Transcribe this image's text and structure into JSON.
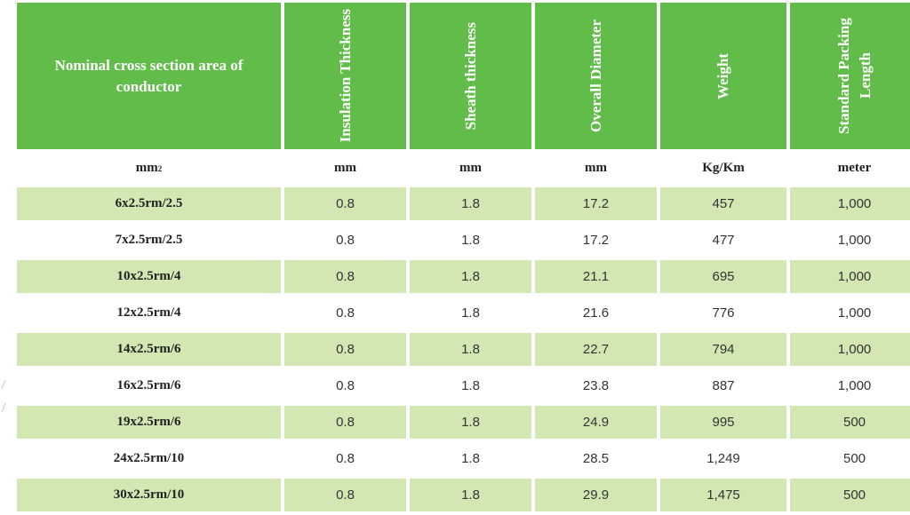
{
  "table": {
    "headers": [
      "Nominal cross section area of conductor",
      "Insulation Thickness",
      "Sheath thickness",
      "Overall Diameter",
      "Weight",
      "Standard Packing Length"
    ],
    "units": [
      "mm",
      "mm",
      "mm",
      "mm",
      "Kg/Km",
      "meter"
    ],
    "unit_first_sup": "2",
    "rows": [
      [
        "6x2.5rm/2.5",
        "0.8",
        "1.8",
        "17.2",
        "457",
        "1,000"
      ],
      [
        "7x2.5rm/2.5",
        "0.8",
        "1.8",
        "17.2",
        "477",
        "1,000"
      ],
      [
        "10x2.5rm/4",
        "0.8",
        "1.8",
        "21.1",
        "695",
        "1,000"
      ],
      [
        "12x2.5rm/4",
        "0.8",
        "1.8",
        "21.6",
        "776",
        "1,000"
      ],
      [
        "14x2.5rm/6",
        "0.8",
        "1.8",
        "22.7",
        "794",
        "1,000"
      ],
      [
        "16x2.5rm/6",
        "0.8",
        "1.8",
        "23.8",
        "887",
        "1,000"
      ],
      [
        "19x2.5rm/6",
        "0.8",
        "1.8",
        "24.9",
        "995",
        "500"
      ],
      [
        "24x2.5rm/10",
        "0.8",
        "1.8",
        "28.5",
        "1,249",
        "500"
      ],
      [
        "30x2.5rm/10",
        "0.8",
        "1.8",
        "29.9",
        "1,475",
        "500"
      ]
    ]
  },
  "colors": {
    "header_bg": "#62bc4a",
    "row_shade": "#d3e7b3",
    "header_text": "#ffffff"
  }
}
